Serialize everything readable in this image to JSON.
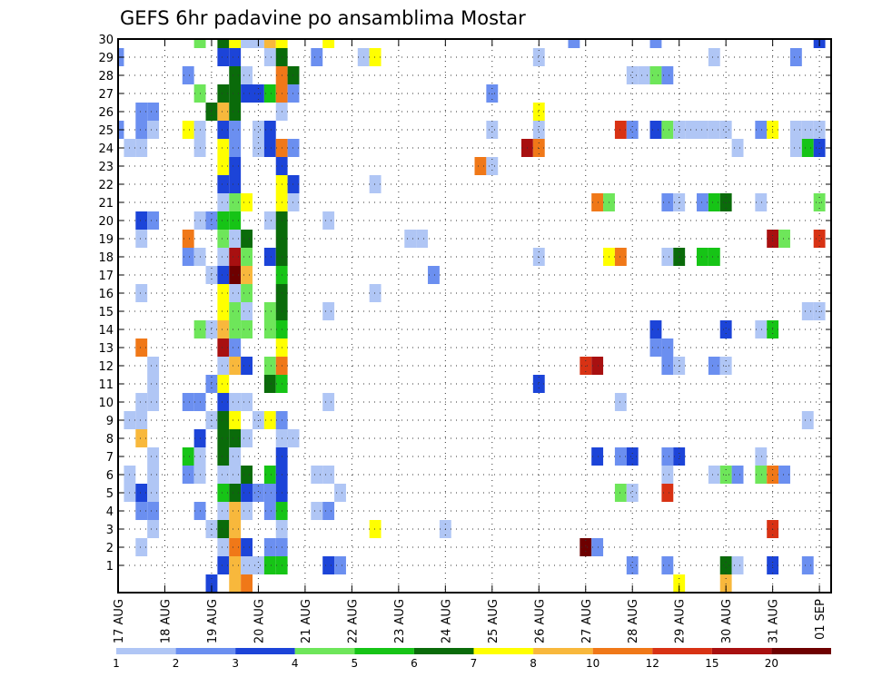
{
  "chart_data": {
    "type": "heatmap",
    "title": "GEFS 6hr padavine po ansamblima Mostar",
    "xlabel": "",
    "ylabel": "",
    "x_tick_labels": [
      "17 AUG",
      "18 AUG",
      "19 AUG",
      "20 AUG",
      "21 AUG",
      "22 AUG",
      "23 AUG",
      "24 AUG",
      "25 AUG",
      "26 AUG",
      "27 AUG",
      "28 AUG",
      "29 AUG",
      "30 AUG",
      "31 AUG",
      "01 SEP"
    ],
    "time_steps": 61,
    "steps_per_day": 4,
    "y_tick_labels": [
      1,
      2,
      3,
      4,
      5,
      6,
      7,
      8,
      9,
      10,
      11,
      12,
      13,
      14,
      15,
      16,
      17,
      18,
      19,
      20,
      21,
      22,
      23,
      24,
      25,
      26,
      27,
      28,
      29,
      30
    ],
    "ylim": [
      0,
      30
    ],
    "grid": "dotted",
    "colorbar": {
      "labels": [
        "1",
        "2",
        "3",
        "4",
        "5",
        "6",
        "7",
        "8",
        "10",
        "12",
        "15",
        "20"
      ],
      "colors": [
        "#b0c6f5",
        "#6b8ff0",
        "#1c44d8",
        "#6ee65a",
        "#16c416",
        "#0a6b0a",
        "#ffff00",
        "#f8b83c",
        "#f07818",
        "#d83214",
        "#a81010",
        "#6e0000"
      ]
    },
    "cells_note": "each cell: [time_step_index, ensemble_member, color_class_index]",
    "cells": [
      [
        0,
        29,
        1
      ],
      [
        0,
        25,
        1
      ],
      [
        1,
        24,
        0
      ],
      [
        1,
        9,
        0
      ],
      [
        1,
        6,
        0
      ],
      [
        1,
        5,
        0
      ],
      [
        2,
        26,
        1
      ],
      [
        2,
        25,
        1
      ],
      [
        2,
        24,
        0
      ],
      [
        2,
        20,
        2
      ],
      [
        2,
        19,
        0
      ],
      [
        2,
        16,
        0
      ],
      [
        2,
        13,
        8
      ],
      [
        2,
        10,
        0
      ],
      [
        2,
        9,
        0
      ],
      [
        2,
        8,
        7
      ],
      [
        2,
        5,
        2
      ],
      [
        2,
        4,
        1
      ],
      [
        2,
        2,
        0
      ],
      [
        3,
        26,
        1
      ],
      [
        3,
        25,
        0
      ],
      [
        3,
        20,
        1
      ],
      [
        3,
        12,
        0
      ],
      [
        3,
        11,
        0
      ],
      [
        3,
        10,
        0
      ],
      [
        3,
        7,
        0
      ],
      [
        3,
        6,
        0
      ],
      [
        3,
        5,
        0
      ],
      [
        3,
        4,
        1
      ],
      [
        3,
        3,
        0
      ],
      [
        6,
        28,
        1
      ],
      [
        6,
        25,
        6
      ],
      [
        6,
        19,
        8
      ],
      [
        6,
        18,
        1
      ],
      [
        6,
        10,
        1
      ],
      [
        6,
        7,
        4
      ],
      [
        6,
        6,
        1
      ],
      [
        7,
        30,
        3
      ],
      [
        7,
        27,
        3
      ],
      [
        7,
        25,
        0
      ],
      [
        7,
        24,
        0
      ],
      [
        7,
        20,
        0
      ],
      [
        7,
        18,
        0
      ],
      [
        7,
        14,
        3
      ],
      [
        7,
        10,
        1
      ],
      [
        7,
        8,
        2
      ],
      [
        7,
        7,
        0
      ],
      [
        7,
        6,
        0
      ],
      [
        7,
        4,
        1
      ],
      [
        8,
        26,
        5
      ],
      [
        8,
        20,
        1
      ],
      [
        8,
        17,
        0
      ],
      [
        8,
        14,
        0
      ],
      [
        8,
        11,
        1
      ],
      [
        8,
        9,
        0
      ],
      [
        8,
        3,
        0
      ],
      [
        8,
        0,
        2
      ],
      [
        9,
        30,
        5
      ],
      [
        9,
        29,
        2
      ],
      [
        9,
        27,
        5
      ],
      [
        9,
        26,
        7
      ],
      [
        9,
        25,
        2
      ],
      [
        9,
        24,
        6
      ],
      [
        9,
        23,
        6
      ],
      [
        9,
        22,
        2
      ],
      [
        9,
        21,
        0
      ],
      [
        9,
        20,
        4
      ],
      [
        9,
        19,
        3
      ],
      [
        9,
        18,
        0
      ],
      [
        9,
        17,
        2
      ],
      [
        9,
        16,
        6
      ],
      [
        9,
        15,
        6
      ],
      [
        9,
        14,
        7
      ],
      [
        9,
        13,
        10
      ],
      [
        9,
        12,
        0
      ],
      [
        9,
        11,
        6
      ],
      [
        9,
        10,
        2
      ],
      [
        9,
        9,
        5
      ],
      [
        9,
        8,
        5
      ],
      [
        9,
        7,
        5
      ],
      [
        9,
        6,
        0
      ],
      [
        9,
        5,
        4
      ],
      [
        9,
        4,
        0
      ],
      [
        9,
        3,
        5
      ],
      [
        9,
        2,
        0
      ],
      [
        9,
        1,
        2
      ],
      [
        10,
        30,
        6
      ],
      [
        10,
        29,
        2
      ],
      [
        10,
        28,
        5
      ],
      [
        10,
        27,
        5
      ],
      [
        10,
        26,
        5
      ],
      [
        10,
        25,
        1
      ],
      [
        10,
        24,
        1
      ],
      [
        10,
        23,
        2
      ],
      [
        10,
        22,
        2
      ],
      [
        10,
        21,
        3
      ],
      [
        10,
        20,
        4
      ],
      [
        10,
        19,
        0
      ],
      [
        10,
        18,
        10
      ],
      [
        10,
        17,
        11
      ],
      [
        10,
        16,
        0
      ],
      [
        10,
        15,
        3
      ],
      [
        10,
        14,
        3
      ],
      [
        10,
        13,
        1
      ],
      [
        10,
        12,
        7
      ],
      [
        10,
        10,
        0
      ],
      [
        10,
        9,
        6
      ],
      [
        10,
        8,
        5
      ],
      [
        10,
        7,
        0
      ],
      [
        10,
        6,
        0
      ],
      [
        10,
        5,
        5
      ],
      [
        10,
        4,
        7
      ],
      [
        10,
        3,
        7
      ],
      [
        10,
        2,
        8
      ],
      [
        10,
        1,
        7
      ],
      [
        10,
        0,
        7
      ],
      [
        11,
        30,
        0
      ],
      [
        11,
        28,
        0
      ],
      [
        11,
        27,
        2
      ],
      [
        11,
        21,
        6
      ],
      [
        11,
        19,
        5
      ],
      [
        11,
        18,
        3
      ],
      [
        11,
        17,
        7
      ],
      [
        11,
        16,
        3
      ],
      [
        11,
        15,
        0
      ],
      [
        11,
        14,
        3
      ],
      [
        11,
        12,
        2
      ],
      [
        11,
        10,
        0
      ],
      [
        11,
        8,
        0
      ],
      [
        11,
        6,
        5
      ],
      [
        11,
        5,
        2
      ],
      [
        11,
        4,
        0
      ],
      [
        11,
        2,
        2
      ],
      [
        11,
        1,
        0
      ],
      [
        11,
        0,
        8
      ],
      [
        12,
        30,
        0
      ],
      [
        12,
        27,
        2
      ],
      [
        12,
        25,
        0
      ],
      [
        12,
        24,
        0
      ],
      [
        12,
        9,
        0
      ],
      [
        12,
        5,
        1
      ],
      [
        12,
        1,
        0
      ],
      [
        13,
        30,
        7
      ],
      [
        13,
        29,
        0
      ],
      [
        13,
        27,
        4
      ],
      [
        13,
        25,
        2
      ],
      [
        13,
        24,
        2
      ],
      [
        13,
        20,
        0
      ],
      [
        13,
        18,
        2
      ],
      [
        13,
        15,
        3
      ],
      [
        13,
        14,
        3
      ],
      [
        13,
        12,
        3
      ],
      [
        13,
        11,
        5
      ],
      [
        13,
        9,
        6
      ],
      [
        13,
        6,
        4
      ],
      [
        13,
        5,
        1
      ],
      [
        13,
        4,
        1
      ],
      [
        13,
        2,
        1
      ],
      [
        13,
        1,
        4
      ],
      [
        14,
        30,
        6
      ],
      [
        14,
        29,
        5
      ],
      [
        14,
        28,
        8
      ],
      [
        14,
        27,
        8
      ],
      [
        14,
        26,
        0
      ],
      [
        14,
        24,
        8
      ],
      [
        14,
        23,
        2
      ],
      [
        14,
        22,
        6
      ],
      [
        14,
        21,
        6
      ],
      [
        14,
        20,
        5
      ],
      [
        14,
        19,
        5
      ],
      [
        14,
        18,
        5
      ],
      [
        14,
        17,
        4
      ],
      [
        14,
        16,
        5
      ],
      [
        14,
        15,
        5
      ],
      [
        14,
        14,
        4
      ],
      [
        14,
        13,
        6
      ],
      [
        14,
        12,
        8
      ],
      [
        14,
        11,
        4
      ],
      [
        14,
        9,
        1
      ],
      [
        14,
        8,
        0
      ],
      [
        14,
        7,
        2
      ],
      [
        14,
        6,
        2
      ],
      [
        14,
        5,
        2
      ],
      [
        14,
        4,
        4
      ],
      [
        14,
        3,
        0
      ],
      [
        14,
        2,
        1
      ],
      [
        14,
        1,
        4
      ],
      [
        15,
        28,
        5
      ],
      [
        15,
        27,
        1
      ],
      [
        15,
        24,
        1
      ],
      [
        15,
        22,
        2
      ],
      [
        15,
        21,
        0
      ],
      [
        15,
        8,
        0
      ],
      [
        17,
        29,
        1
      ],
      [
        17,
        6,
        0
      ],
      [
        17,
        4,
        0
      ],
      [
        18,
        30,
        6
      ],
      [
        18,
        20,
        0
      ],
      [
        18,
        15,
        0
      ],
      [
        18,
        10,
        0
      ],
      [
        18,
        6,
        0
      ],
      [
        18,
        4,
        1
      ],
      [
        18,
        1,
        2
      ],
      [
        19,
        5,
        0
      ],
      [
        19,
        1,
        1
      ],
      [
        21,
        29,
        0
      ],
      [
        22,
        29,
        6
      ],
      [
        22,
        22,
        0
      ],
      [
        22,
        16,
        0
      ],
      [
        22,
        3,
        6
      ],
      [
        25,
        19,
        0
      ],
      [
        26,
        19,
        0
      ],
      [
        27,
        17,
        1
      ],
      [
        28,
        3,
        0
      ],
      [
        31,
        23,
        8
      ],
      [
        32,
        27,
        1
      ],
      [
        32,
        25,
        0
      ],
      [
        32,
        23,
        0
      ],
      [
        35,
        24,
        10
      ],
      [
        36,
        29,
        0
      ],
      [
        36,
        26,
        6
      ],
      [
        36,
        25,
        0
      ],
      [
        36,
        24,
        8
      ],
      [
        36,
        18,
        0
      ],
      [
        36,
        11,
        2
      ],
      [
        39,
        30,
        1
      ],
      [
        40,
        12,
        9
      ],
      [
        40,
        2,
        11
      ],
      [
        41,
        21,
        8
      ],
      [
        41,
        12,
        10
      ],
      [
        41,
        7,
        2
      ],
      [
        41,
        2,
        1
      ],
      [
        42,
        21,
        3
      ],
      [
        42,
        18,
        6
      ],
      [
        43,
        18,
        8
      ],
      [
        43,
        25,
        9
      ],
      [
        43,
        10,
        0
      ],
      [
        43,
        7,
        1
      ],
      [
        43,
        5,
        3
      ],
      [
        44,
        28,
        0
      ],
      [
        44,
        25,
        1
      ],
      [
        44,
        7,
        2
      ],
      [
        44,
        5,
        0
      ],
      [
        44,
        1,
        1
      ],
      [
        45,
        28,
        0
      ],
      [
        46,
        30,
        1
      ],
      [
        46,
        28,
        3
      ],
      [
        46,
        25,
        2
      ],
      [
        46,
        14,
        2
      ],
      [
        46,
        13,
        1
      ],
      [
        47,
        28,
        1
      ],
      [
        47,
        25,
        3
      ],
      [
        47,
        21,
        1
      ],
      [
        47,
        18,
        0
      ],
      [
        47,
        13,
        1
      ],
      [
        47,
        12,
        1
      ],
      [
        47,
        7,
        1
      ],
      [
        47,
        6,
        0
      ],
      [
        47,
        5,
        9
      ],
      [
        47,
        1,
        1
      ],
      [
        48,
        25,
        0
      ],
      [
        48,
        21,
        0
      ],
      [
        48,
        18,
        5
      ],
      [
        48,
        12,
        0
      ],
      [
        48,
        7,
        2
      ],
      [
        48,
        0,
        6
      ],
      [
        49,
        25,
        0
      ],
      [
        50,
        25,
        0
      ],
      [
        50,
        21,
        1
      ],
      [
        50,
        18,
        4
      ],
      [
        51,
        29,
        0
      ],
      [
        51,
        25,
        0
      ],
      [
        51,
        21,
        4
      ],
      [
        51,
        18,
        4
      ],
      [
        51,
        12,
        1
      ],
      [
        51,
        6,
        0
      ],
      [
        52,
        25,
        0
      ],
      [
        52,
        21,
        5
      ],
      [
        52,
        14,
        2
      ],
      [
        52,
        12,
        0
      ],
      [
        52,
        6,
        3
      ],
      [
        52,
        1,
        5
      ],
      [
        52,
        0,
        7
      ],
      [
        53,
        24,
        0
      ],
      [
        53,
        6,
        1
      ],
      [
        53,
        1,
        0
      ],
      [
        55,
        25,
        1
      ],
      [
        55,
        21,
        0
      ],
      [
        55,
        14,
        0
      ],
      [
        55,
        7,
        0
      ],
      [
        55,
        6,
        3
      ],
      [
        56,
        25,
        6
      ],
      [
        56,
        19,
        10
      ],
      [
        56,
        14,
        4
      ],
      [
        56,
        6,
        8
      ],
      [
        56,
        3,
        9
      ],
      [
        56,
        1,
        2
      ],
      [
        57,
        19,
        3
      ],
      [
        57,
        6,
        1
      ],
      [
        58,
        29,
        1
      ],
      [
        58,
        25,
        0
      ],
      [
        58,
        24,
        0
      ],
      [
        59,
        25,
        0
      ],
      [
        59,
        24,
        4
      ],
      [
        59,
        15,
        0
      ],
      [
        59,
        9,
        0
      ],
      [
        59,
        1,
        1
      ],
      [
        60,
        30,
        2
      ],
      [
        60,
        25,
        0
      ],
      [
        60,
        24,
        2
      ],
      [
        60,
        21,
        3
      ],
      [
        60,
        19,
        9
      ],
      [
        60,
        15,
        0
      ]
    ]
  }
}
